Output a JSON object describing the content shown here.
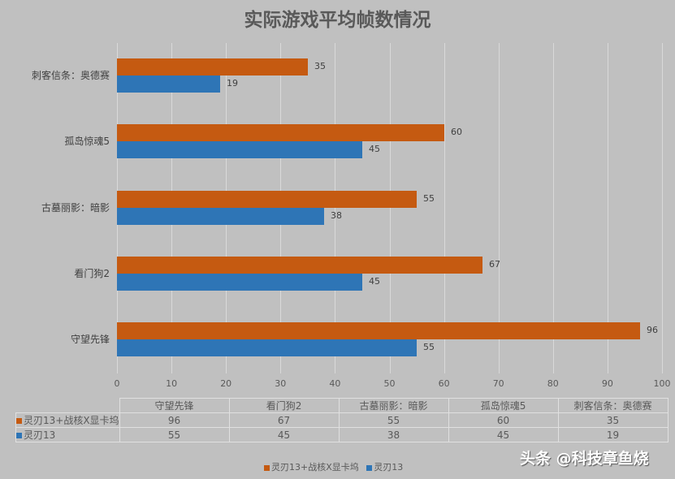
{
  "chart_data": {
    "type": "bar",
    "orientation": "horizontal",
    "title": "实际游戏平均帧数情况",
    "categories": [
      "守望先锋",
      "看门狗2",
      "古墓丽影：暗影",
      "孤岛惊魂5",
      "刺客信条：奥德赛"
    ],
    "series": [
      {
        "name": "灵刃13+战核X显卡坞",
        "color": "#c55a11",
        "values": [
          96,
          67,
          55,
          60,
          35
        ]
      },
      {
        "name": "灵刃13",
        "color": "#2e75b6",
        "values": [
          55,
          45,
          38,
          45,
          19
        ]
      }
    ],
    "xlabel": "",
    "ylabel": "",
    "xlim": [
      0,
      100
    ],
    "x_ticks": [
      "0",
      "10",
      "20",
      "30",
      "40",
      "50",
      "60",
      "70",
      "80",
      "90",
      "100"
    ],
    "grid": true,
    "legend_position": "bottom",
    "data_table": true
  },
  "title": "实际游戏平均帧数情况",
  "legend": {
    "s0": "灵刃13+战核X显卡坞",
    "s1": "灵刃13"
  },
  "table": {
    "headers": [
      "守望先锋",
      "看门狗2",
      "古墓丽影：暗影",
      "孤岛惊魂5",
      "刺客信条：奥德赛"
    ],
    "rows": [
      {
        "label": "灵刃13+战核X显卡坞",
        "values": [
          "96",
          "67",
          "55",
          "60",
          "35"
        ]
      },
      {
        "label": "灵刃13",
        "values": [
          "55",
          "45",
          "38",
          "45",
          "19"
        ]
      }
    ]
  },
  "watermark": "头条 @科技章鱼烧",
  "colors": {
    "s0": "#c55a11",
    "s1": "#2e75b6",
    "background": "#c0c0c0"
  }
}
